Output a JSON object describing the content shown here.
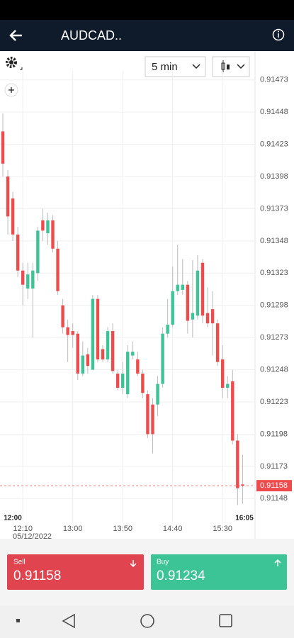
{
  "app": {
    "title": "AUDCAD..",
    "interval": "5 min",
    "sell_label": "Sell",
    "sell_price": "0.91158",
    "buy_label": "Buy",
    "buy_price": "0.91234"
  },
  "chart_data": {
    "type": "candlestick",
    "categories": [
      null,
      null,
      null,
      null,
      "12:10",
      null,
      null,
      null,
      null,
      null,
      null,
      null,
      null,
      null,
      "13:00",
      null,
      null,
      null,
      null,
      null,
      null,
      null,
      null,
      null,
      "13:50",
      null,
      null,
      null,
      null,
      null,
      null,
      null,
      null,
      null,
      "14:40",
      null,
      null,
      null,
      null,
      null,
      null,
      null,
      null,
      null,
      "15:30",
      null,
      null,
      null,
      null
    ],
    "date_label": "05/12/2022",
    "range_start": "12:00",
    "range_end": "16:05",
    "open": [
      0.91433,
      0.91398,
      0.91381,
      0.91353,
      0.91325,
      0.91311,
      0.91311,
      0.91323,
      0.91364,
      0.91354,
      0.91364,
      0.91342,
      0.91298,
      0.91281,
      0.91278,
      0.91276,
      0.91245,
      0.9126,
      0.91248,
      0.91303,
      0.91264,
      0.91256,
      0.91278,
      0.91245,
      0.91234,
      0.91229,
      0.91259,
      0.91256,
      0.91245,
      0.91229,
      0.91221,
      0.91221,
      0.91237,
      0.91276,
      0.91283,
      0.91309,
      0.9131,
      0.91314,
      0.91287,
      0.9129,
      0.91331,
      0.91292,
      0.91295,
      0.91284,
      0.91256,
      0.91234,
      0.91239,
      0.91193,
      0.91159
    ],
    "high": [
      0.91447,
      0.91403,
      0.91386,
      0.91359,
      0.91331,
      0.91331,
      0.91331,
      0.91359,
      0.91373,
      0.9137,
      0.91368,
      0.91348,
      0.91303,
      0.91287,
      0.91284,
      0.91278,
      0.9127,
      0.91265,
      0.91306,
      0.91306,
      0.91267,
      0.91281,
      0.91284,
      0.91248,
      0.91254,
      0.91267,
      0.9127,
      0.91262,
      0.91248,
      0.91232,
      0.91226,
      0.91243,
      0.91281,
      0.91303,
      0.91328,
      0.91345,
      0.91334,
      0.91317,
      0.91333,
      0.91337,
      0.91334,
      0.91312,
      0.91309,
      0.91287,
      0.91267,
      0.91243,
      0.91248,
      0.91198,
      0.91182
    ],
    "low": [
      0.91398,
      0.91353,
      0.91348,
      0.9132,
      0.91298,
      0.91303,
      0.91273,
      0.91317,
      0.91348,
      0.91345,
      0.91339,
      0.91306,
      0.91276,
      0.91254,
      0.91265,
      0.9124,
      0.91243,
      0.91245,
      0.91248,
      0.91254,
      0.91254,
      0.91254,
      0.91245,
      0.91232,
      0.91229,
      0.91226,
      0.91256,
      0.91243,
      0.91226,
      0.91195,
      0.91183,
      0.91212,
      0.91234,
      0.91273,
      0.91281,
      0.91306,
      0.91306,
      0.91276,
      0.91273,
      0.91287,
      0.91284,
      0.91281,
      0.91259,
      0.91251,
      0.91226,
      0.91226,
      0.9119,
      0.91143,
      0.91144
    ],
    "close": [
      0.91408,
      0.91367,
      0.91353,
      0.91325,
      0.91314,
      0.91322,
      0.91325,
      0.91356,
      0.91356,
      0.91364,
      0.91342,
      0.91309,
      0.91281,
      0.91275,
      0.91275,
      0.91245,
      0.91259,
      0.91251,
      0.91303,
      0.91256,
      0.91256,
      0.91278,
      0.91247,
      0.91234,
      0.91245,
      0.91262,
      0.91262,
      0.91245,
      0.9123,
      0.91198,
      0.91198,
      0.91237,
      0.91276,
      0.91283,
      0.91309,
      0.91314,
      0.91314,
      0.91286,
      0.91292,
      0.91325,
      0.9129,
      0.91284,
      0.91284,
      0.91254,
      0.91234,
      0.91237,
      0.91193,
      0.91156,
      0.91158
    ],
    "up_color": "#3dc496",
    "down_color": "#ee4c4c",
    "last_price": 0.91158,
    "ylim": [
      0.9113,
      0.9148
    ],
    "yticks": [
      0.91473,
      0.91448,
      0.91423,
      0.91398,
      0.91373,
      0.91348,
      0.91323,
      0.91298,
      0.91273,
      0.91248,
      0.91223,
      0.91198,
      0.91173,
      0.91148
    ],
    "grid": true
  }
}
